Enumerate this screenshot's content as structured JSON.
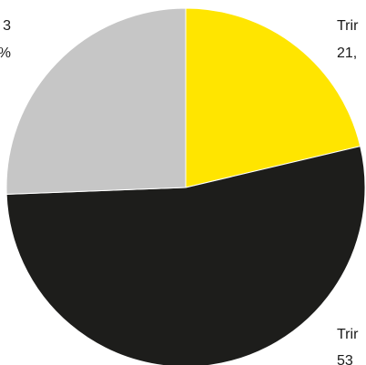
{
  "chart_data": {
    "type": "pie",
    "start_angle_deg": 0,
    "direction": "clockwise",
    "colors": {
      "background": "#ffffff",
      "stroke": "#ffffff"
    },
    "slices": [
      {
        "label_line1": "Trir",
        "label_line2": "21,",
        "value": 21.3,
        "color": "#ffe500"
      },
      {
        "label_line1": "Trir",
        "label_line2": "53",
        "value": 53.1,
        "color": "#1d1d1b"
      },
      {
        "label_line1": "3",
        "label_line2": "%",
        "value": 25.6,
        "color": "#c6c6c6"
      }
    ]
  }
}
